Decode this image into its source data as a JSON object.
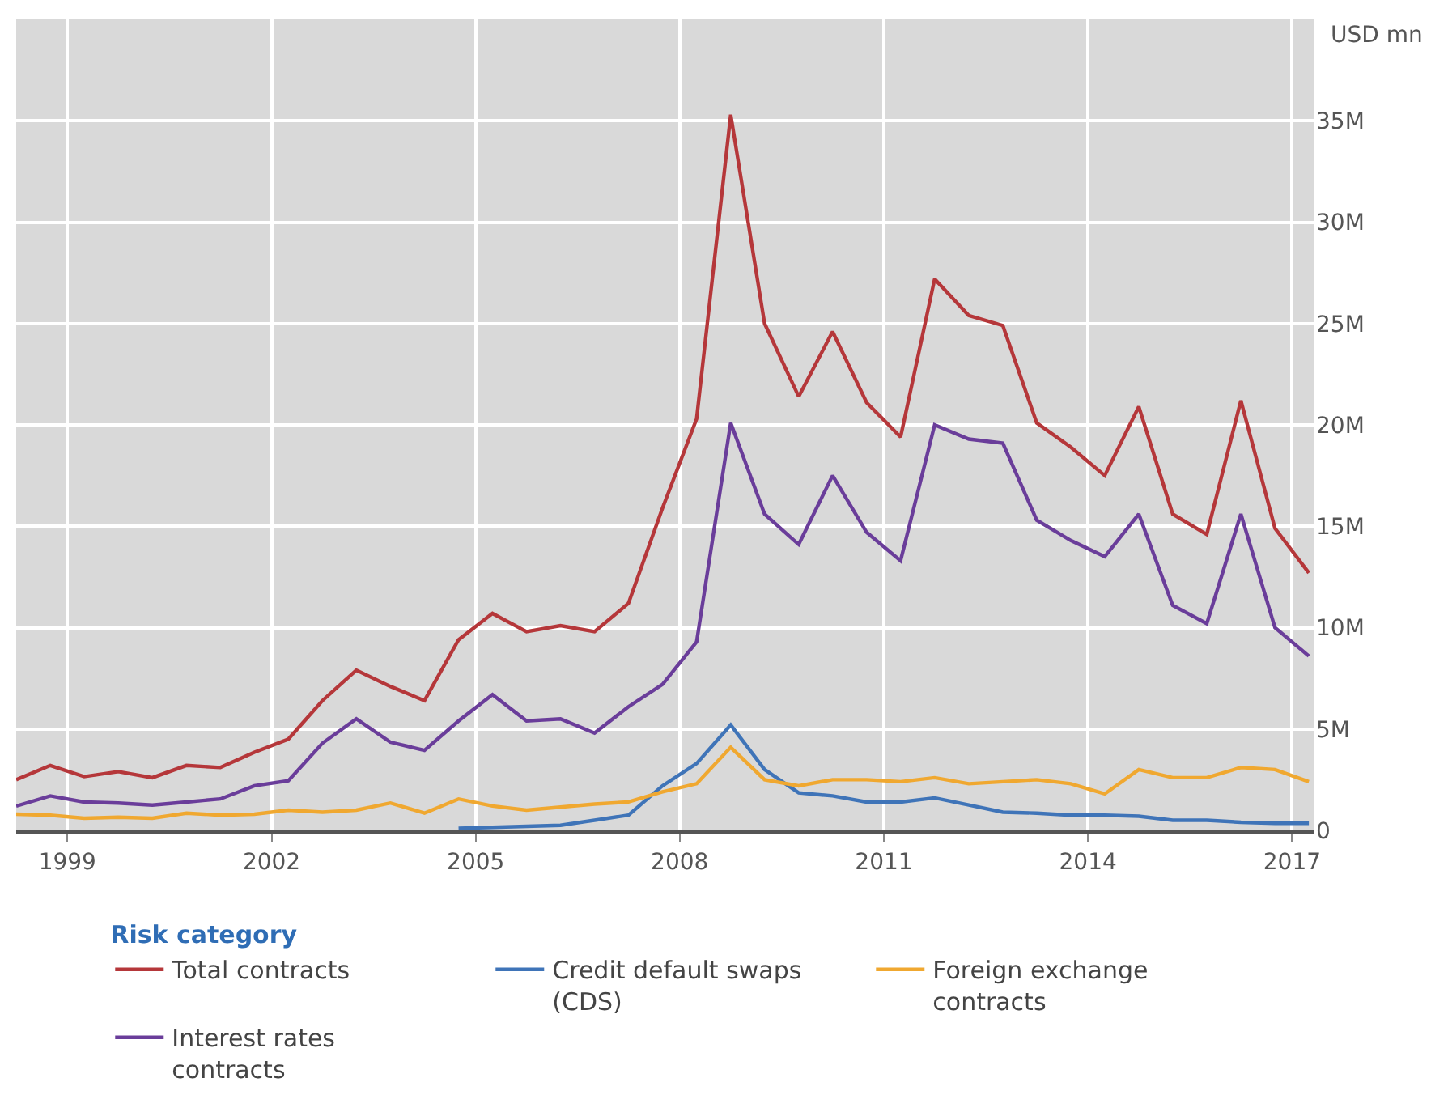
{
  "chart_data": {
    "type": "line",
    "x": [
      "1998-04-01",
      "1998-10-01",
      "1999-04-01",
      "1999-10-01",
      "2000-04-01",
      "2000-10-01",
      "2001-04-01",
      "2001-10-01",
      "2002-04-01",
      "2002-10-01",
      "2003-04-01",
      "2003-10-01",
      "2004-04-01",
      "2004-10-01",
      "2005-04-01",
      "2005-10-01",
      "2006-04-01",
      "2006-10-01",
      "2007-04-01",
      "2007-10-01",
      "2008-04-01",
      "2008-10-01",
      "2009-04-01",
      "2009-10-01",
      "2010-04-01",
      "2010-10-01",
      "2011-04-01",
      "2011-10-01",
      "2012-04-01",
      "2012-10-01",
      "2013-04-01",
      "2013-10-01",
      "2014-04-01",
      "2014-10-01",
      "2015-04-01",
      "2015-10-01",
      "2016-04-01",
      "2016-10-01",
      "2017-04-01"
    ],
    "ylabel": "USD mn",
    "legend_title": "Risk category",
    "series": [
      {
        "name": "Total contracts",
        "color": "#b5373a",
        "values": [
          2.5,
          3.2,
          2.65,
          2.9,
          2.6,
          3.2,
          3.1,
          3.85,
          4.5,
          6.4,
          7.9,
          7.1,
          6.4,
          9.4,
          10.7,
          9.8,
          10.1,
          9.8,
          11.2,
          15.9,
          20.3,
          35.3,
          25.0,
          21.4,
          24.6,
          21.1,
          19.4,
          27.2,
          25.4,
          24.9,
          20.1,
          18.9,
          17.5,
          20.9,
          15.6,
          14.6,
          21.2,
          14.9,
          12.7
        ]
      },
      {
        "name": "Credit default swaps (CDS)",
        "color": "#3f74b8",
        "values": [
          null,
          null,
          null,
          null,
          null,
          null,
          null,
          null,
          null,
          null,
          null,
          null,
          null,
          0.1,
          0.15,
          0.2,
          0.25,
          0.5,
          0.75,
          2.2,
          3.3,
          5.2,
          3.0,
          1.85,
          1.7,
          1.4,
          1.4,
          1.6,
          1.25,
          0.9,
          0.85,
          0.75,
          0.75,
          0.7,
          0.5,
          0.5,
          0.4,
          0.35,
          0.35
        ]
      },
      {
        "name": "Foreign exchange contracts",
        "color": "#f0a830",
        "values": [
          0.8,
          0.75,
          0.6,
          0.65,
          0.6,
          0.85,
          0.75,
          0.8,
          1.0,
          0.9,
          1.0,
          1.35,
          0.85,
          1.55,
          1.2,
          1.0,
          1.15,
          1.3,
          1.4,
          1.9,
          2.3,
          4.1,
          2.5,
          2.2,
          2.5,
          2.5,
          2.4,
          2.6,
          2.3,
          2.4,
          2.5,
          2.3,
          1.8,
          3.0,
          2.6,
          2.6,
          3.1,
          3.0,
          2.4
        ]
      },
      {
        "name": "Interest rates contracts",
        "color": "#6a3d9a",
        "values": [
          1.2,
          1.7,
          1.4,
          1.35,
          1.25,
          1.4,
          1.55,
          2.2,
          2.45,
          4.3,
          5.5,
          4.35,
          3.95,
          5.4,
          6.7,
          5.4,
          5.5,
          4.8,
          6.1,
          7.2,
          9.3,
          20.1,
          15.6,
          14.1,
          17.5,
          14.7,
          13.3,
          20.0,
          19.3,
          19.1,
          15.3,
          14.3,
          13.5,
          15.6,
          11.1,
          10.2,
          15.6,
          10.0,
          8.6
        ]
      }
    ],
    "xlim": [
      "1998-04-01",
      "2017-05-01"
    ],
    "xticks": [
      {
        "value": "1999-01-01",
        "label": "1999"
      },
      {
        "value": "2002-01-01",
        "label": "2002"
      },
      {
        "value": "2005-01-01",
        "label": "2005"
      },
      {
        "value": "2008-01-01",
        "label": "2008"
      },
      {
        "value": "2011-01-01",
        "label": "2011"
      },
      {
        "value": "2014-01-01",
        "label": "2014"
      },
      {
        "value": "2017-01-01",
        "label": "2017"
      }
    ],
    "ylim": [
      0,
      40
    ],
    "yticks": [
      0,
      {
        "value": 5,
        "label": "5M"
      },
      {
        "value": 10,
        "label": "10M"
      },
      {
        "value": 15,
        "label": "15M"
      },
      {
        "value": 20,
        "label": "20M"
      },
      {
        "value": 25,
        "label": "25M"
      },
      {
        "value": 30,
        "label": "30M"
      },
      {
        "value": 35,
        "label": "35M"
      }
    ],
    "grid": true,
    "legend": "bottom",
    "marker": "none",
    "line_style": "solid"
  }
}
